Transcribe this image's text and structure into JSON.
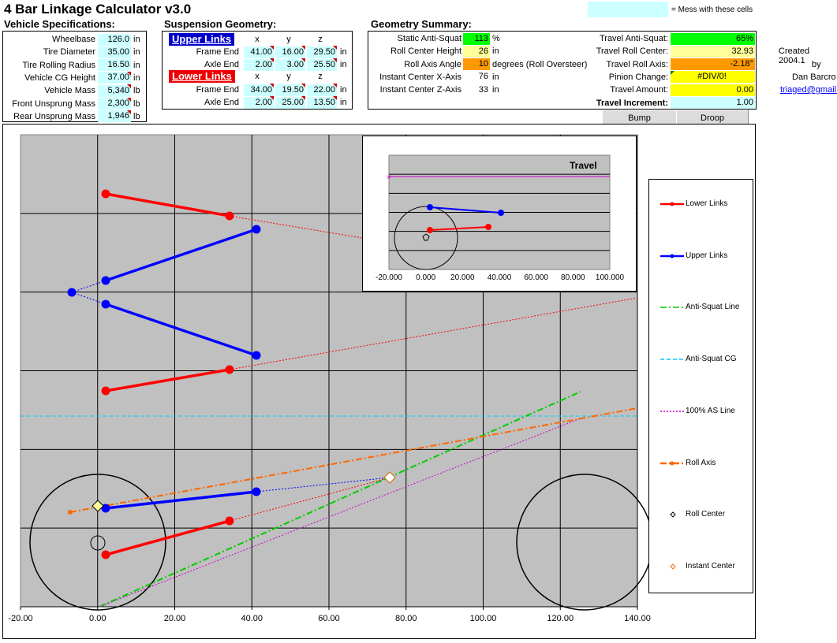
{
  "title": "4 Bar Linkage Calculator v3.0",
  "legend_note": "= Mess with these cells",
  "vehicle": {
    "heading": "Vehicle Specifications:",
    "rows": [
      {
        "label": "Wheelbase",
        "value": "126.0",
        "unit": "in"
      },
      {
        "label": "Tire Diameter",
        "value": "35.00",
        "unit": "in"
      },
      {
        "label": "Tire Rolling Radius",
        "value": "16.50",
        "unit": "in"
      },
      {
        "label": "Vehicle CG Height",
        "value": "37.00",
        "unit": "in"
      },
      {
        "label": "Vehicle Mass",
        "value": "5,340",
        "unit": "lb"
      },
      {
        "label": "Front Unsprung Mass",
        "value": "2,300",
        "unit": "lb"
      },
      {
        "label": "Rear Unsprung Mass",
        "value": "1,946",
        "unit": "lb"
      }
    ]
  },
  "suspension": {
    "heading": "Suspension Geometry:",
    "upper_label": "Upper Links",
    "lower_label": "Lower Links",
    "col_x": "x",
    "col_y": "y",
    "col_z": "z",
    "upper": [
      {
        "label": "Frame End",
        "x": "41.00",
        "y": "16.00",
        "z": "29.50",
        "unit": "in"
      },
      {
        "label": "Axle End",
        "x": "2.00",
        "y": "3.00",
        "z": "25.50",
        "unit": "in"
      }
    ],
    "lower": [
      {
        "label": "Frame End",
        "x": "34.00",
        "y": "19.50",
        "z": "22.00",
        "unit": "in"
      },
      {
        "label": "Axle End",
        "x": "2.00",
        "y": "25.00",
        "z": "13.50",
        "unit": "in"
      }
    ]
  },
  "summary": {
    "heading": "Geometry Summary:",
    "left": [
      {
        "label": "Static Anti-Squat",
        "value": "113",
        "unit": "%",
        "color": "#00ff00"
      },
      {
        "label": "Roll Center Height",
        "value": "26",
        "unit": "in",
        "color": "#ffff99"
      },
      {
        "label": "Roll Axis Angle",
        "value": "10",
        "unit": "degrees (Roll Oversteer)",
        "color": "#ff9900"
      },
      {
        "label": "Instant Center X-Axis",
        "value": "76",
        "unit": "in",
        "color": ""
      },
      {
        "label": "Instant Center Z-Axis",
        "value": "33",
        "unit": "in",
        "color": ""
      }
    ],
    "right": [
      {
        "label": "Travel Anti-Squat:",
        "value": "65%",
        "color": "#00ff00"
      },
      {
        "label": "Travel Roll Center:",
        "value": "32.93",
        "color": "#ffff99"
      },
      {
        "label": "Travel Roll Axis:",
        "value": "-2.18°",
        "color": "#ff9900"
      },
      {
        "label": "Pinion Change:",
        "value": "#DIV/0!",
        "color": "#ffff00"
      },
      {
        "label": "Travel Amount:",
        "value": "0.00",
        "color": "#ffff00"
      },
      {
        "label": "Travel Increment:",
        "value": "1.00",
        "color": "#ccffff"
      }
    ]
  },
  "credits": {
    "created": "Created 2004.1",
    "by": "by",
    "author": "Dan Barcro",
    "email": "triaged@gmail."
  },
  "buttons": {
    "bump": "Bump",
    "droop": "Droop"
  },
  "chart_data": [
    {
      "type": "scatter",
      "title": "",
      "xlabel": "",
      "ylabel": "",
      "xlim": [
        -20,
        140
      ],
      "ylim": [
        0,
        60
      ],
      "x_ticks": [
        "-20.00",
        "0.00",
        "20.00",
        "40.00",
        "60.00",
        "80.00",
        "100.00",
        "120.00",
        "140.00"
      ],
      "grid": true,
      "legend_position": "right",
      "legend": [
        "Lower Links",
        "Upper Links",
        "Anti-Squat Line",
        "Anti-Squat CG",
        "100% AS Line",
        "Roll Axis",
        "Roll Center",
        "Instant Center"
      ],
      "colors": {
        "lower": "#ff0000",
        "upper": "#0000ff",
        "antisquat": "#00cc00",
        "ascg": "#00ccff",
        "as100": "#cc00cc",
        "roll": "#ff6600",
        "rc": "#cccc00",
        "ic": "#ffffff"
      }
    },
    {
      "type": "scatter",
      "title": "Travel",
      "xlim": [
        -20,
        100
      ],
      "x_ticks": [
        "-20.000",
        "0.000",
        "20.000",
        "40.000",
        "60.000",
        "80.000",
        "100.000"
      ],
      "grid": true
    }
  ]
}
